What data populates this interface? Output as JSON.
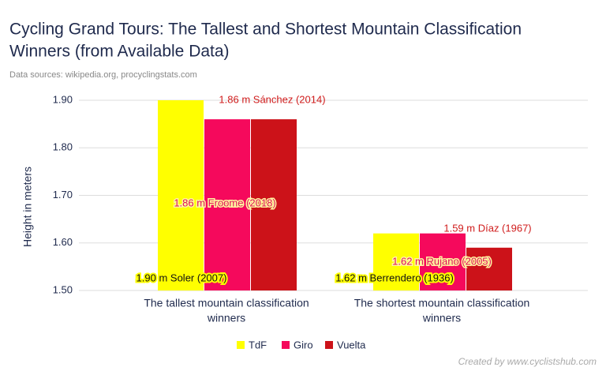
{
  "chart_data": {
    "type": "bar",
    "title": [
      "Cycling Grand Tours: The Tallest and Shortest Mountain Classification",
      "Winners (from Available Data)"
    ],
    "subtitle": "Data sources: wikipedia.org, procyclingstats.com",
    "y_label": "Height in meters",
    "credit": "Created by www.cyclistshub.com",
    "categories": [
      [
        "The tallest mountain classification",
        "winners"
      ],
      [
        "The shortest mountain classification",
        "winners"
      ]
    ],
    "series": [
      {
        "name": "TdF",
        "color": "#ffff00",
        "values": [
          1.9,
          1.62
        ],
        "value_labels": [
          "1.90 m Soler (2007)",
          "1.62 m Berrendero (1936)"
        ]
      },
      {
        "name": "Giro",
        "color": "#f5095c",
        "values": [
          1.86,
          1.62
        ],
        "value_labels": [
          "1.86 m Froome (2018)",
          "1.62 m Rujano (2005)"
        ]
      },
      {
        "name": "Vuelta",
        "color": "#cc1219",
        "values": [
          1.86,
          1.59
        ],
        "value_labels": [
          "1.86 m Sánchez (2014)",
          "1.59 m Díaz (1967)"
        ]
      }
    ],
    "ylim": [
      1.5,
      1.9
    ],
    "yticks": [
      {
        "value": 1.5,
        "label": "1.50"
      },
      {
        "value": 1.6,
        "label": "1.60"
      },
      {
        "value": 1.7,
        "label": "1.70"
      },
      {
        "value": 1.8,
        "label": "1.80"
      },
      {
        "value": 1.9,
        "label": "1.90"
      }
    ],
    "grid": true,
    "legend": "bottom"
  }
}
